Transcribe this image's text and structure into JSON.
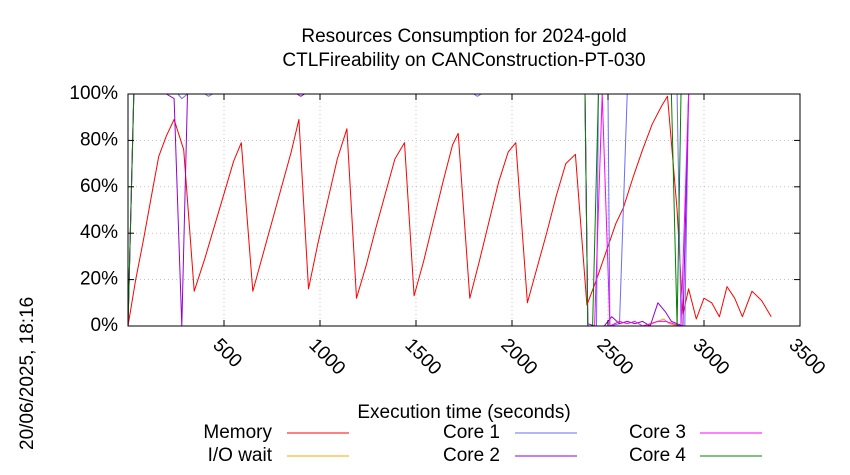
{
  "chart_data": {
    "type": "line",
    "title": "Resources Consumption for 2024-gold",
    "subtitle": "CTLFireability on CANConstruction-PT-030",
    "xlabel": "Execution time (seconds)",
    "ylabel": "",
    "xlim": [
      0,
      3500
    ],
    "ylim": [
      0,
      100
    ],
    "x_ticks": [
      "500",
      "1000",
      "1500",
      "2000",
      "2500",
      "3000",
      "3500"
    ],
    "x_tick_values": [
      500,
      1000,
      1500,
      2000,
      2500,
      3000,
      3500
    ],
    "y_ticks": [
      "0%",
      "20%",
      "40%",
      "60%",
      "80%",
      "100%"
    ],
    "y_tick_values": [
      0,
      20,
      40,
      60,
      80,
      100
    ],
    "grid": true,
    "legend_position": "bottom",
    "timestamp": "20/06/2025, 18:16",
    "series": [
      {
        "name": "Memory",
        "color": "#ff0000",
        "points": [
          [
            0,
            0
          ],
          [
            40,
            20
          ],
          [
            80,
            37
          ],
          [
            120,
            55
          ],
          [
            160,
            73
          ],
          [
            200,
            82
          ],
          [
            240,
            89
          ],
          [
            290,
            76
          ],
          [
            320,
            43
          ],
          [
            345,
            15
          ],
          [
            400,
            29
          ],
          [
            450,
            43
          ],
          [
            500,
            57
          ],
          [
            550,
            71
          ],
          [
            590,
            79
          ],
          [
            650,
            15
          ],
          [
            700,
            30
          ],
          [
            750,
            45
          ],
          [
            800,
            60
          ],
          [
            850,
            75
          ],
          [
            890,
            89
          ],
          [
            940,
            16
          ],
          [
            990,
            36
          ],
          [
            1040,
            54
          ],
          [
            1090,
            72
          ],
          [
            1140,
            85
          ],
          [
            1190,
            12
          ],
          [
            1240,
            26
          ],
          [
            1290,
            42
          ],
          [
            1340,
            57
          ],
          [
            1390,
            72
          ],
          [
            1440,
            79
          ],
          [
            1490,
            13
          ],
          [
            1540,
            28
          ],
          [
            1590,
            45
          ],
          [
            1640,
            62
          ],
          [
            1690,
            78
          ],
          [
            1720,
            83
          ],
          [
            1780,
            12
          ],
          [
            1830,
            28
          ],
          [
            1880,
            45
          ],
          [
            1930,
            62
          ],
          [
            1980,
            75
          ],
          [
            2020,
            79
          ],
          [
            2080,
            10
          ],
          [
            2130,
            25
          ],
          [
            2180,
            40
          ],
          [
            2230,
            56
          ],
          [
            2280,
            70
          ],
          [
            2330,
            74
          ],
          [
            2390,
            9
          ],
          [
            2440,
            20
          ],
          [
            2490,
            32
          ],
          [
            2540,
            44
          ],
          [
            2580,
            51
          ],
          [
            2630,
            64
          ],
          [
            2680,
            76
          ],
          [
            2730,
            87
          ],
          [
            2780,
            95
          ],
          [
            2810,
            99
          ],
          [
            2860,
            50
          ],
          [
            2890,
            5
          ],
          [
            2920,
            16
          ],
          [
            2960,
            3
          ],
          [
            3000,
            12
          ],
          [
            3040,
            10
          ],
          [
            3080,
            4
          ],
          [
            3120,
            17
          ],
          [
            3160,
            12
          ],
          [
            3200,
            4
          ],
          [
            3250,
            15
          ],
          [
            3300,
            11
          ],
          [
            3350,
            4
          ]
        ]
      },
      {
        "name": "I/O wait",
        "color": "#ffa500",
        "points": [
          [
            2700,
            0
          ],
          [
            2760,
            2
          ],
          [
            2790,
            3
          ],
          [
            2820,
            1
          ],
          [
            2860,
            0
          ],
          [
            3350,
            0
          ]
        ]
      },
      {
        "name": "Core 1",
        "color": "#6b6bff",
        "points": [
          [
            0,
            0
          ],
          [
            30,
            100
          ],
          [
            260,
            100
          ],
          [
            280,
            98
          ],
          [
            310,
            100
          ],
          [
            400,
            100
          ],
          [
            420,
            99
          ],
          [
            440,
            100
          ],
          [
            900,
            100
          ],
          [
            1800,
            100
          ],
          [
            1820,
            99
          ],
          [
            1840,
            100
          ],
          [
            2380,
            100
          ],
          [
            2395,
            0
          ],
          [
            2420,
            0
          ],
          [
            2440,
            0
          ],
          [
            2450,
            100
          ],
          [
            2500,
            100
          ],
          [
            2510,
            0
          ],
          [
            2560,
            1
          ],
          [
            2600,
            100
          ],
          [
            2860,
            100
          ],
          [
            2880,
            0
          ],
          [
            2900,
            0
          ],
          [
            2920,
            100
          ],
          [
            3350,
            100
          ]
        ]
      },
      {
        "name": "Core 2",
        "color": "#9400d3",
        "points": [
          [
            0,
            0
          ],
          [
            30,
            100
          ],
          [
            200,
            100
          ],
          [
            240,
            98
          ],
          [
            280,
            0
          ],
          [
            310,
            100
          ],
          [
            880,
            100
          ],
          [
            900,
            99
          ],
          [
            920,
            100
          ],
          [
            2380,
            100
          ],
          [
            2395,
            1
          ],
          [
            2430,
            0
          ],
          [
            2480,
            0
          ],
          [
            2520,
            4
          ],
          [
            2560,
            1
          ],
          [
            2600,
            2
          ],
          [
            2640,
            1
          ],
          [
            2680,
            2
          ],
          [
            2720,
            0
          ],
          [
            2760,
            10
          ],
          [
            2800,
            6
          ],
          [
            2830,
            2
          ],
          [
            2860,
            1
          ],
          [
            2890,
            0
          ],
          [
            2920,
            100
          ],
          [
            3350,
            100
          ]
        ]
      },
      {
        "name": "Core 3",
        "color": "#ff00ff",
        "points": [
          [
            0,
            0
          ],
          [
            30,
            100
          ],
          [
            2380,
            100
          ],
          [
            2395,
            0
          ],
          [
            2430,
            0
          ],
          [
            2470,
            100
          ],
          [
            2510,
            0
          ],
          [
            2560,
            2
          ],
          [
            2600,
            1
          ],
          [
            2640,
            2
          ],
          [
            2680,
            0
          ],
          [
            2720,
            1
          ],
          [
            2760,
            2
          ],
          [
            2800,
            2
          ],
          [
            2840,
            1
          ],
          [
            2880,
            0
          ],
          [
            2920,
            100
          ],
          [
            3350,
            100
          ]
        ]
      },
      {
        "name": "Core 4",
        "color": "#008000",
        "points": [
          [
            0,
            0
          ],
          [
            30,
            100
          ],
          [
            2380,
            100
          ],
          [
            2395,
            0
          ],
          [
            2420,
            0
          ],
          [
            2450,
            100
          ],
          [
            2830,
            100
          ],
          [
            2860,
            0
          ],
          [
            2880,
            100
          ],
          [
            3350,
            100
          ]
        ]
      }
    ]
  }
}
